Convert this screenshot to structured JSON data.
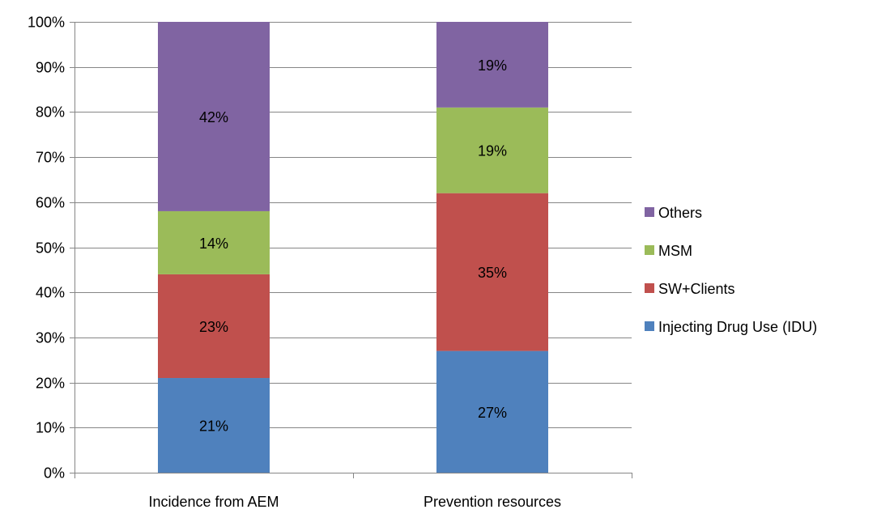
{
  "chart_data": {
    "type": "bar",
    "stacked": true,
    "categories": [
      "Incidence from AEM",
      "Prevention resources"
    ],
    "series": [
      {
        "name": "Injecting Drug Use (IDU)",
        "values": [
          21,
          27
        ],
        "labels": [
          "21%",
          "27%"
        ],
        "color": "#4f81bd"
      },
      {
        "name": "SW+Clients",
        "values": [
          23,
          35
        ],
        "labels": [
          "23%",
          "35%"
        ],
        "color": "#c0504d"
      },
      {
        "name": "MSM",
        "values": [
          14,
          19
        ],
        "labels": [
          "14%",
          "19%"
        ],
        "color": "#9bbb59"
      },
      {
        "name": "Others",
        "values": [
          42,
          19
        ],
        "labels": [
          "42%",
          "19%"
        ],
        "color": "#8064a2"
      }
    ],
    "ylim": [
      0,
      100
    ],
    "yticks": [
      0,
      10,
      20,
      30,
      40,
      50,
      60,
      70,
      80,
      90,
      100
    ],
    "ytick_labels": [
      "0%",
      "10%",
      "20%",
      "30%",
      "40%",
      "50%",
      "60%",
      "70%",
      "80%",
      "90%",
      "100%"
    ],
    "title": "",
    "xlabel": "",
    "ylabel": "",
    "grid": true,
    "legend_position": "right"
  }
}
